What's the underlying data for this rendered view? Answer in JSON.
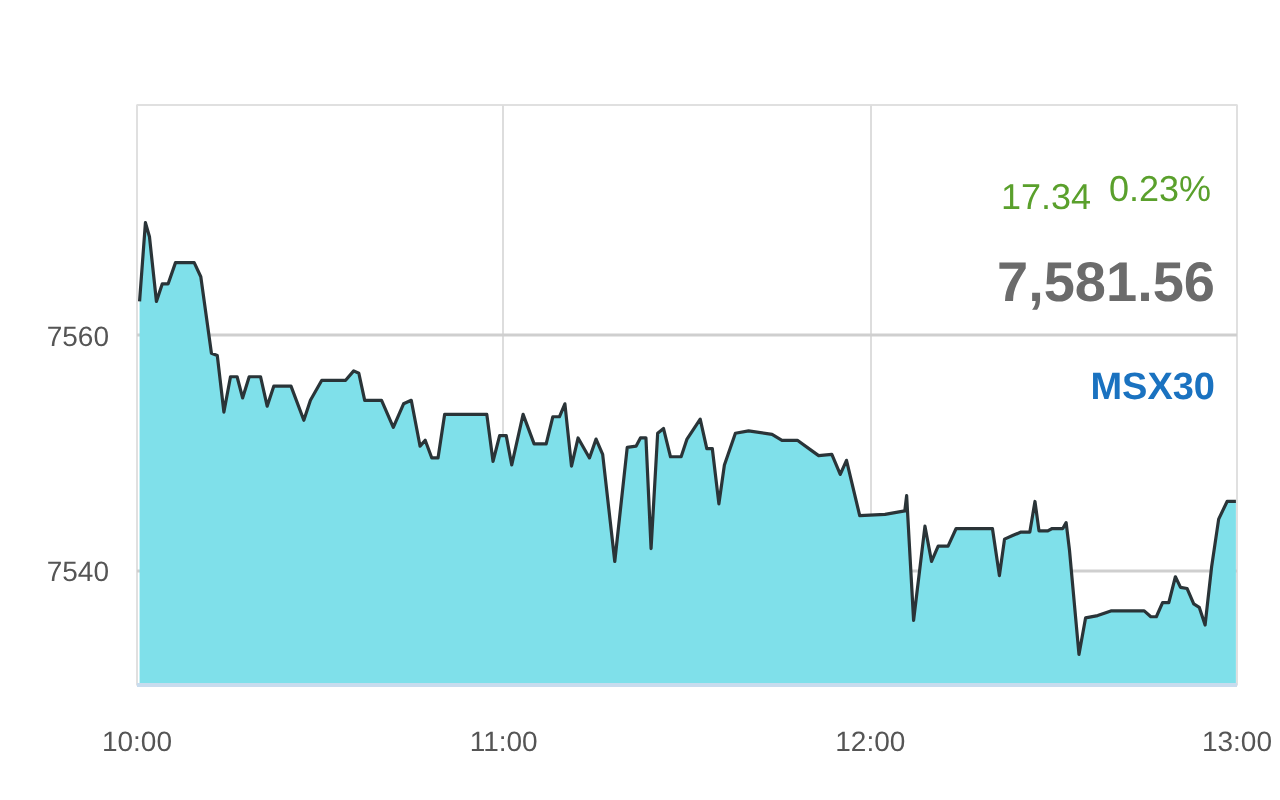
{
  "chart_data": {
    "type": "area",
    "x": [
      10.007,
      10.023,
      10.034,
      10.053,
      10.069,
      10.085,
      10.105,
      10.156,
      10.174,
      10.203,
      10.219,
      10.237,
      10.255,
      10.273,
      10.288,
      10.306,
      10.337,
      10.355,
      10.373,
      10.42,
      10.455,
      10.473,
      10.504,
      10.569,
      10.591,
      10.605,
      10.621,
      10.667,
      10.699,
      10.727,
      10.748,
      10.772,
      10.786,
      10.804,
      10.821,
      10.839,
      10.954,
      10.971,
      10.989,
      11.007,
      11.022,
      11.053,
      11.083,
      11.116,
      11.134,
      11.152,
      11.167,
      11.185,
      11.203,
      11.234,
      11.252,
      11.27,
      11.303,
      11.337,
      11.361,
      11.373,
      11.388,
      11.402,
      11.42,
      11.436,
      11.455,
      11.484,
      11.5,
      11.536,
      11.554,
      11.569,
      11.587,
      11.602,
      11.632,
      11.668,
      11.732,
      11.759,
      11.801,
      11.841,
      11.859,
      11.895,
      11.918,
      11.935,
      11.971,
      12.04,
      12.094,
      12.099,
      12.118,
      12.149,
      12.167,
      12.185,
      12.212,
      12.234,
      12.333,
      12.352,
      12.366,
      12.388,
      12.411,
      12.435,
      12.449,
      12.46,
      12.484,
      12.496,
      12.525,
      12.534,
      12.543,
      12.569,
      12.587,
      12.62,
      12.656,
      12.747,
      12.765,
      12.78,
      12.797,
      12.814,
      12.832,
      12.846,
      12.864,
      12.882,
      12.897,
      12.913,
      12.931,
      12.95,
      12.973,
      12.997
    ],
    "series": [
      {
        "color": "#7fe0ea",
        "values": [
          7562.9,
          7569.6,
          7568.4,
          7562.9,
          7564.4,
          7564.4,
          7566.2,
          7566.2,
          7565.0,
          7558.5,
          7558.3,
          7553.5,
          7556.5,
          7556.5,
          7554.7,
          7556.5,
          7556.5,
          7554.0,
          7555.7,
          7555.7,
          7552.8,
          7554.5,
          7556.2,
          7556.2,
          7557.0,
          7556.8,
          7554.5,
          7554.5,
          7552.2,
          7554.2,
          7554.5,
          7550.6,
          7551.1,
          7549.6,
          7549.6,
          7553.3,
          7553.3,
          7549.3,
          7551.5,
          7551.5,
          7549.0,
          7553.3,
          7550.8,
          7550.8,
          7553.1,
          7553.1,
          7554.2,
          7548.9,
          7551.3,
          7549.6,
          7551.2,
          7549.9,
          7540.8,
          7550.5,
          7550.6,
          7551.3,
          7551.3,
          7541.9,
          7551.7,
          7552.1,
          7549.7,
          7549.7,
          7551.2,
          7552.9,
          7550.4,
          7550.4,
          7545.7,
          7549.0,
          7551.7,
          7551.9,
          7551.6,
          7551.1,
          7551.1,
          7550.2,
          7549.8,
          7549.9,
          7548.2,
          7549.4,
          7544.7,
          7544.8,
          7545.1,
          7546.4,
          7535.8,
          7543.8,
          7540.8,
          7542.1,
          7542.1,
          7543.6,
          7543.6,
          7539.6,
          7542.7,
          7543.0,
          7543.3,
          7543.3,
          7545.9,
          7543.4,
          7543.4,
          7543.6,
          7543.6,
          7544.1,
          7541.8,
          7532.9,
          7536.0,
          7536.2,
          7536.6,
          7536.6,
          7536.1,
          7536.1,
          7537.3,
          7537.3,
          7539.5,
          7538.6,
          7538.5,
          7537.2,
          7536.9,
          7535.4,
          7540.4,
          7544.4,
          7545.9,
          7545.9
        ]
      }
    ],
    "xlim": [
      10,
      13
    ],
    "xticks": [
      {
        "value": 10,
        "label": "10:00"
      },
      {
        "value": 11,
        "label": "11:00"
      },
      {
        "value": 12,
        "label": "12:00"
      },
      {
        "value": 13,
        "label": "13:00"
      }
    ],
    "ylim": [
      7530.3,
      7579.6
    ],
    "yticks": [
      7540,
      7560
    ],
    "grid": true,
    "annotations": [
      "17.34",
      "0.23%",
      "7,581.56",
      "MSX30"
    ]
  }
}
